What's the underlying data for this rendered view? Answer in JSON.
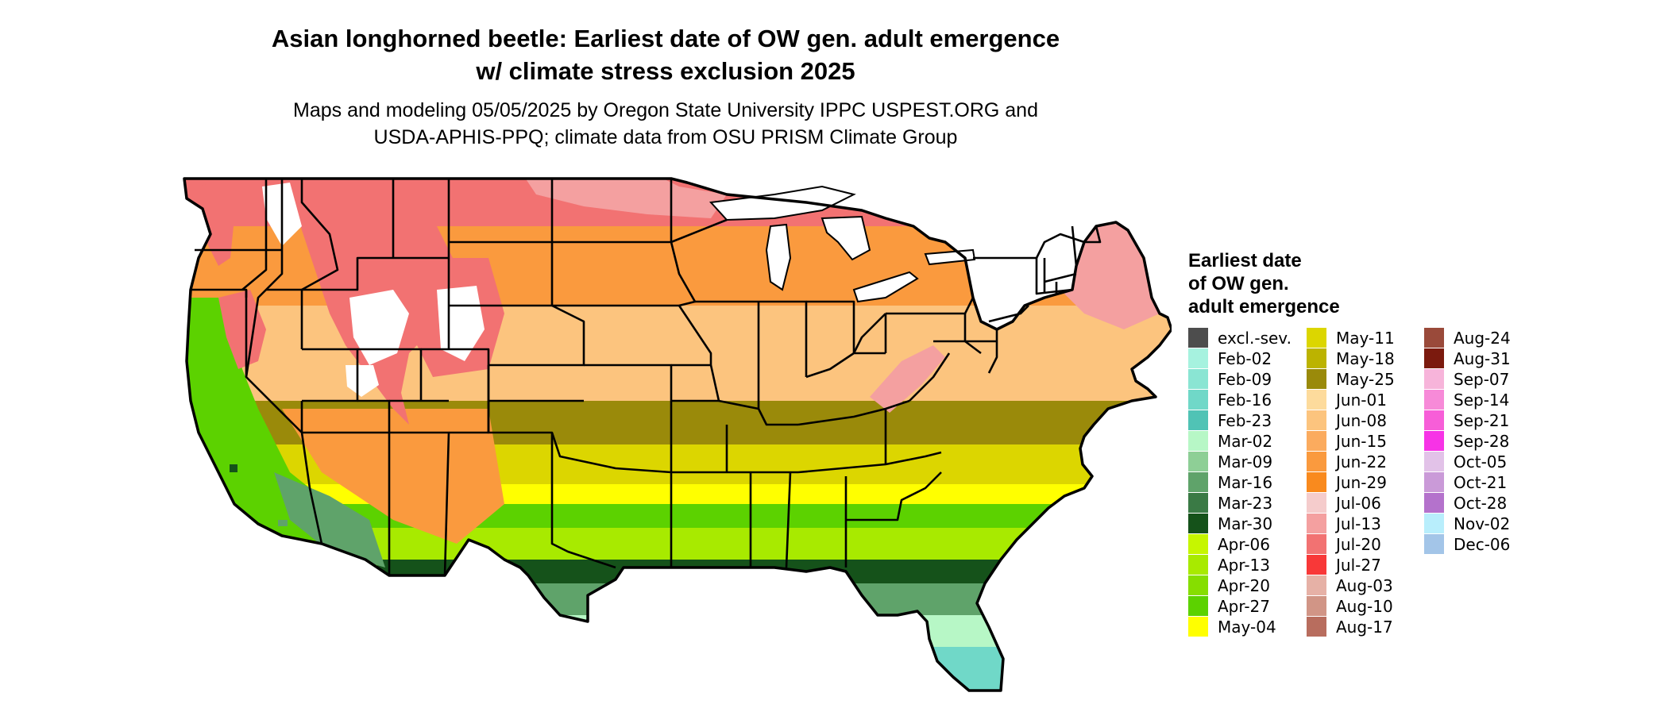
{
  "header": {
    "title_line1": "Asian longhorned beetle: Earliest date of OW gen. adult emergence",
    "title_line2": "w/ climate stress exclusion 2025",
    "subtitle_line1": "Maps and modeling 05/05/2025 by Oregon State University IPPC USPEST.ORG and",
    "subtitle_line2": "USDA-APHIS-PPQ; climate data from OSU PRISM Climate Group"
  },
  "legend": {
    "title_line1": "Earliest date",
    "title_line2": "of OW gen.",
    "title_line3": "adult emergence",
    "columns": [
      [
        {
          "label": "excl.-sev.",
          "color": "#4d4d4d"
        },
        {
          "label": "Feb-02",
          "color": "#a6f2df"
        },
        {
          "label": "Feb-09",
          "color": "#8ae5d3"
        },
        {
          "label": "Feb-16",
          "color": "#70d8c8"
        },
        {
          "label": "Feb-23",
          "color": "#50c3b5"
        },
        {
          "label": "Mar-02",
          "color": "#b7f7c6"
        },
        {
          "label": "Mar-09",
          "color": "#8ecf96"
        },
        {
          "label": "Mar-16",
          "color": "#5fa36a"
        },
        {
          "label": "Mar-23",
          "color": "#3a7a45"
        },
        {
          "label": "Mar-30",
          "color": "#15521a"
        },
        {
          "label": "Apr-06",
          "color": "#c6f600"
        },
        {
          "label": "Apr-13",
          "color": "#a8ea00"
        },
        {
          "label": "Apr-20",
          "color": "#86de00"
        },
        {
          "label": "Apr-27",
          "color": "#5cd200"
        },
        {
          "label": "May-04",
          "color": "#ffff00"
        }
      ],
      [
        {
          "label": "May-11",
          "color": "#dcd600"
        },
        {
          "label": "May-18",
          "color": "#bcb300"
        },
        {
          "label": "May-25",
          "color": "#9a8a0a"
        },
        {
          "label": "Jun-01",
          "color": "#fddb9c"
        },
        {
          "label": "Jun-08",
          "color": "#fcc47e"
        },
        {
          "label": "Jun-15",
          "color": "#fbab5e"
        },
        {
          "label": "Jun-22",
          "color": "#fa9a3e"
        },
        {
          "label": "Jun-29",
          "color": "#f98a1e"
        },
        {
          "label": "Jul-06",
          "color": "#f5cccc"
        },
        {
          "label": "Jul-13",
          "color": "#f4a0a0"
        },
        {
          "label": "Jul-20",
          "color": "#f27272"
        },
        {
          "label": "Jul-27",
          "color": "#f83838"
        },
        {
          "label": "Aug-03",
          "color": "#e6b1a6"
        },
        {
          "label": "Aug-10",
          "color": "#d19586"
        },
        {
          "label": "Aug-17",
          "color": "#b86d5e"
        }
      ],
      [
        {
          "label": "Aug-24",
          "color": "#9a4a3a"
        },
        {
          "label": "Aug-31",
          "color": "#7b1a0e"
        },
        {
          "label": "Sep-07",
          "color": "#f7b4da"
        },
        {
          "label": "Sep-14",
          "color": "#f78ad8"
        },
        {
          "label": "Sep-21",
          "color": "#f75ed8"
        },
        {
          "label": "Sep-28",
          "color": "#f733e6"
        },
        {
          "label": "Oct-05",
          "color": "#e2c2e8"
        },
        {
          "label": "Oct-21",
          "color": "#ca9ad8"
        },
        {
          "label": "Oct-28",
          "color": "#b472cc"
        },
        {
          "label": "Nov-02",
          "color": "#b8eefc"
        },
        {
          "label": "Dec-06",
          "color": "#a3c5e8"
        }
      ]
    ]
  },
  "map": {
    "bands": [
      {
        "date": "Jul-20",
        "color": "#f27272"
      },
      {
        "date": "Jun-22",
        "color": "#fa9a3e"
      },
      {
        "date": "Jun-08",
        "color": "#fcc47e"
      },
      {
        "date": "May-25",
        "color": "#9a8a0a"
      },
      {
        "date": "May-11",
        "color": "#dcd600"
      },
      {
        "date": "May-04",
        "color": "#ffff00"
      },
      {
        "date": "Apr-27",
        "color": "#5cd200"
      },
      {
        "date": "Apr-13",
        "color": "#a8ea00"
      },
      {
        "date": "Mar-30",
        "color": "#15521a"
      },
      {
        "date": "Mar-16",
        "color": "#5fa36a"
      },
      {
        "date": "Mar-02",
        "color": "#b7f7c6"
      },
      {
        "date": "Feb-16",
        "color": "#70d8c8"
      }
    ],
    "mountain_zone_color": "#f27272",
    "high_elevation_color": "#f4a0a0",
    "snow_color": "#ffffff",
    "great_lakes_color": "#ffffff",
    "border_color": "#000000"
  }
}
